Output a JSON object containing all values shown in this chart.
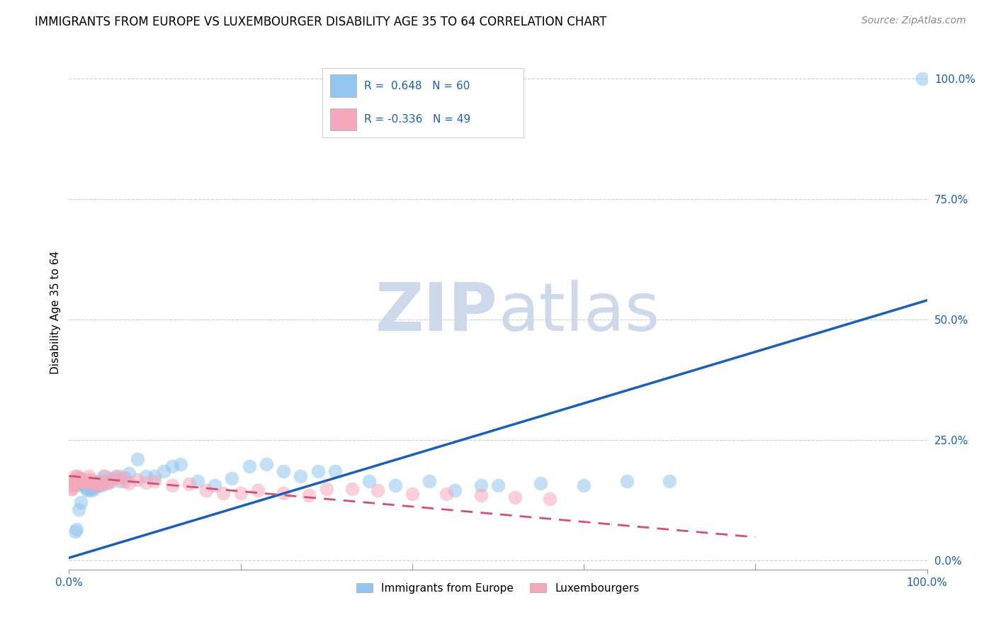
{
  "title": "IMMIGRANTS FROM EUROPE VS LUXEMBOURGER DISABILITY AGE 35 TO 64 CORRELATION CHART",
  "source": "Source: ZipAtlas.com",
  "ylabel": "Disability Age 35 to 64",
  "xlim": [
    0,
    1.0
  ],
  "ylim": [
    -0.02,
    1.05
  ],
  "xtick_positions": [
    0.0,
    1.0
  ],
  "xtick_labels": [
    "0.0%",
    "100.0%"
  ],
  "ytick_positions": [
    0.0,
    0.25,
    0.5,
    0.75,
    1.0
  ],
  "ytick_labels": [
    "0.0%",
    "25.0%",
    "50.0%",
    "75.0%",
    "100.0%"
  ],
  "grid_color": "#cccccc",
  "background_color": "#ffffff",
  "blue_R": 0.648,
  "blue_N": 60,
  "pink_R": -0.336,
  "pink_N": 49,
  "blue_color": "#92c5f0",
  "pink_color": "#f5a8bc",
  "blue_line_color": "#1a5fb4",
  "pink_line_color": "#d45070",
  "blue_scatter_x": [
    0.005,
    0.008,
    0.01,
    0.012,
    0.013,
    0.015,
    0.016,
    0.018,
    0.02,
    0.021,
    0.022,
    0.023,
    0.024,
    0.025,
    0.026,
    0.027,
    0.028,
    0.03,
    0.032,
    0.033,
    0.035,
    0.038,
    0.04,
    0.042,
    0.045,
    0.05,
    0.055,
    0.06,
    0.065,
    0.07,
    0.08,
    0.09,
    0.1,
    0.11,
    0.12,
    0.13,
    0.15,
    0.17,
    0.19,
    0.21,
    0.23,
    0.25,
    0.27,
    0.29,
    0.31,
    0.35,
    0.38,
    0.42,
    0.45,
    0.48,
    0.5,
    0.55,
    0.6,
    0.65,
    0.7,
    0.007,
    0.009,
    0.011,
    0.014,
    0.995
  ],
  "blue_scatter_y": [
    0.155,
    0.165,
    0.16,
    0.17,
    0.155,
    0.165,
    0.16,
    0.155,
    0.15,
    0.145,
    0.155,
    0.148,
    0.16,
    0.152,
    0.145,
    0.158,
    0.148,
    0.155,
    0.152,
    0.165,
    0.16,
    0.155,
    0.175,
    0.165,
    0.16,
    0.17,
    0.175,
    0.165,
    0.172,
    0.18,
    0.21,
    0.175,
    0.175,
    0.185,
    0.195,
    0.2,
    0.165,
    0.155,
    0.17,
    0.195,
    0.2,
    0.185,
    0.175,
    0.185,
    0.185,
    0.165,
    0.155,
    0.165,
    0.145,
    0.155,
    0.155,
    0.16,
    0.155,
    0.165,
    0.165,
    0.06,
    0.065,
    0.105,
    0.12,
    1.0
  ],
  "pink_scatter_x": [
    0.003,
    0.005,
    0.007,
    0.009,
    0.01,
    0.012,
    0.014,
    0.016,
    0.018,
    0.02,
    0.022,
    0.024,
    0.025,
    0.027,
    0.03,
    0.032,
    0.035,
    0.038,
    0.04,
    0.042,
    0.045,
    0.05,
    0.055,
    0.06,
    0.065,
    0.07,
    0.08,
    0.09,
    0.1,
    0.12,
    0.14,
    0.16,
    0.18,
    0.2,
    0.22,
    0.25,
    0.28,
    0.3,
    0.33,
    0.36,
    0.4,
    0.44,
    0.48,
    0.52,
    0.56,
    0.003,
    0.004,
    0.006,
    0.008
  ],
  "pink_scatter_y": [
    0.148,
    0.165,
    0.175,
    0.168,
    0.175,
    0.172,
    0.168,
    0.165,
    0.162,
    0.168,
    0.162,
    0.175,
    0.168,
    0.162,
    0.16,
    0.155,
    0.16,
    0.158,
    0.16,
    0.175,
    0.162,
    0.165,
    0.172,
    0.175,
    0.165,
    0.16,
    0.168,
    0.162,
    0.165,
    0.155,
    0.158,
    0.145,
    0.14,
    0.14,
    0.145,
    0.14,
    0.135,
    0.148,
    0.148,
    0.145,
    0.138,
    0.138,
    0.135,
    0.13,
    0.128,
    0.148,
    0.155,
    0.158,
    0.162
  ],
  "blue_trend_x": [
    0.0,
    1.0
  ],
  "blue_trend_y": [
    0.005,
    0.54
  ],
  "pink_trend_x": [
    0.0,
    0.8
  ],
  "pink_trend_y": [
    0.175,
    0.048
  ],
  "watermark_zip": "ZIP",
  "watermark_atlas": "atlas",
  "watermark_color": "#cdd8ea",
  "title_fontsize": 12,
  "axis_label_fontsize": 11,
  "tick_fontsize": 11,
  "source_fontsize": 10,
  "scatter_size": 200,
  "blue_label": "Immigrants from Europe",
  "pink_label": "Luxembourgers"
}
